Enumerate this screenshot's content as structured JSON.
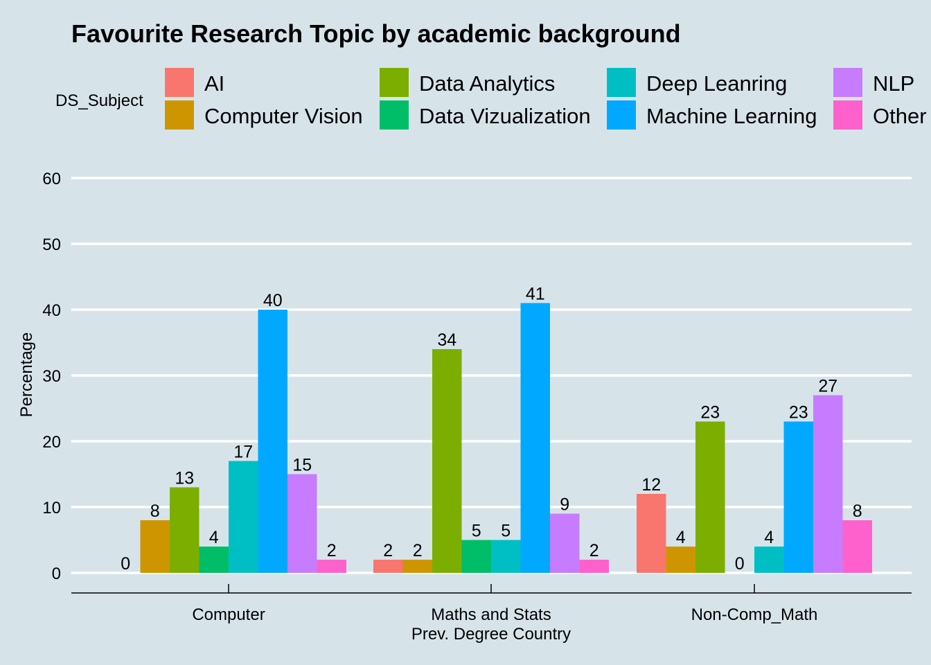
{
  "chart_data": {
    "type": "bar",
    "title": "Favourite Research Topic by academic background",
    "xlabel": "Prev. Degree Country",
    "ylabel": "Percentage",
    "ylim": [
      0,
      60
    ],
    "yticks": [
      0,
      10,
      20,
      30,
      40,
      50,
      60
    ],
    "grid": true,
    "legend_position": "top",
    "legend_title": "DS_Subject",
    "categories": [
      "Computer",
      "Maths and Stats",
      "Non-Comp_Math"
    ],
    "series": [
      {
        "name": "AI",
        "color": "#f8766d",
        "values": [
          0,
          2,
          12
        ]
      },
      {
        "name": "Computer Vision",
        "color": "#cd9600",
        "values": [
          8,
          2,
          4
        ]
      },
      {
        "name": "Data Analytics",
        "color": "#7cae00",
        "values": [
          13,
          34,
          23
        ]
      },
      {
        "name": "Data Vizualization",
        "color": "#00be67",
        "values": [
          4,
          5,
          0
        ]
      },
      {
        "name": "Deep Leanring",
        "color": "#00bfc4",
        "values": [
          17,
          5,
          4
        ]
      },
      {
        "name": "Machine Learning",
        "color": "#00a9ff",
        "values": [
          40,
          41,
          23
        ]
      },
      {
        "name": "NLP",
        "color": "#c77cff",
        "values": [
          15,
          9,
          27
        ]
      },
      {
        "name": "Other",
        "color": "#ff61cc",
        "values": [
          2,
          2,
          8
        ]
      }
    ]
  }
}
